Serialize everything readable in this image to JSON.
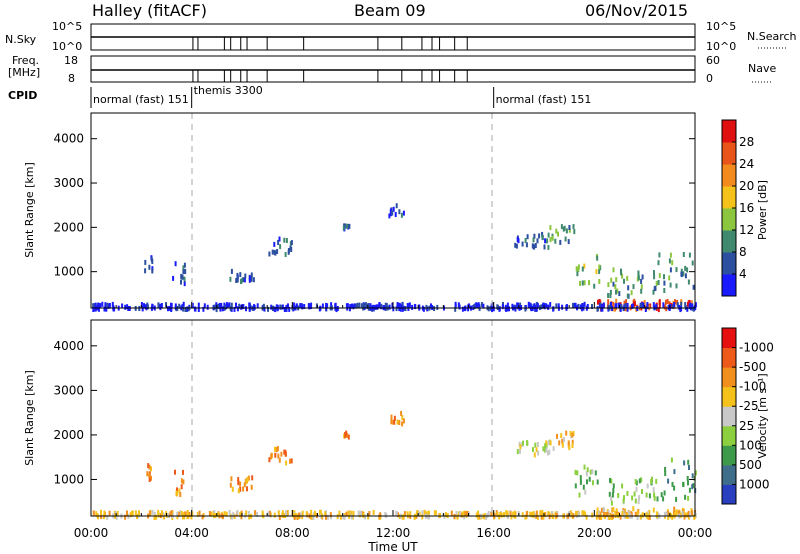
{
  "header": {
    "station": "Halley (fitACF)",
    "beam": "Beam 09",
    "date": "06/Nov/2015"
  },
  "strips": {
    "nsky_label": "N.Sky",
    "nsky_ticks": [
      "10^5",
      "10^0"
    ],
    "nsearch_label": "N.Search",
    "nsearch_ticks": [
      "10^5",
      "10^0"
    ],
    "freq_label_line1": "Freq.",
    "freq_label_line2": "[MHz]",
    "freq_ticks": [
      "18",
      "8"
    ],
    "nave_label": "Nave",
    "nave_ticks": [
      "60",
      "0"
    ],
    "cpid_label": "CPID",
    "cpid_segments": [
      {
        "text": "normal (fast) 151",
        "start_hour": 0
      },
      {
        "text": "themis 3300",
        "start_hour": 4
      },
      {
        "text": "normal (fast) 151",
        "start_hour": 16
      }
    ]
  },
  "chart_data": [
    {
      "type": "heatmap",
      "name": "power",
      "ylabel": "Slant Range [km]",
      "yticks": [
        1000,
        2000,
        3000,
        4000
      ],
      "ylim": [
        180,
        4580
      ],
      "xlim": [
        0,
        24
      ],
      "colorbar_label": "Power [dB]",
      "colorbar_ticks": [
        "4",
        "8",
        "12",
        "16",
        "20",
        "24",
        "28"
      ],
      "colorbar_colors": [
        "#1a1aff",
        "#2d4fa0",
        "#3f8a6e",
        "#8cc63f",
        "#f5c21b",
        "#f28a1e",
        "#e8541a",
        "#e01010"
      ],
      "scatter_clusters": [
        {
          "t": [
            2.1,
            2.4
          ],
          "r": [
            1050,
            1400
          ],
          "c": 1
        },
        {
          "t": [
            3.2,
            3.8
          ],
          "r": [
            700,
            1300
          ],
          "c": 1
        },
        {
          "t": [
            5.5,
            6.5
          ],
          "r": [
            800,
            1100
          ],
          "c": 1
        },
        {
          "t": [
            7.0,
            8.0
          ],
          "r": [
            1400,
            1800
          ],
          "c": 1
        },
        {
          "t": [
            10.0,
            10.3
          ],
          "r": [
            2000,
            2100
          ],
          "c": 1
        },
        {
          "t": [
            11.8,
            12.4
          ],
          "r": [
            2300,
            2550
          ],
          "c": 1
        },
        {
          "t": [
            16.8,
            18.2
          ],
          "r": [
            1600,
            1900
          ],
          "c": 1
        },
        {
          "t": [
            18.2,
            19.2
          ],
          "r": [
            1700,
            2100
          ],
          "c": 2
        },
        {
          "t": [
            19.2,
            20.2
          ],
          "r": [
            700,
            1400
          ],
          "c": 3
        },
        {
          "t": [
            20.5,
            22.5
          ],
          "r": [
            500,
            1100
          ],
          "c": 2
        },
        {
          "t": [
            22.5,
            24.0
          ],
          "r": [
            600,
            1500
          ],
          "c": 2
        },
        {
          "t": [
            20.0,
            24.0
          ],
          "r": [
            200,
            400
          ],
          "c": 6
        },
        {
          "t": [
            0.0,
            24.0
          ],
          "r": [
            200,
            320
          ],
          "c": 0
        }
      ]
    },
    {
      "type": "heatmap",
      "name": "velocity",
      "ylabel": "Slant Range [km]",
      "yticks": [
        1000,
        2000,
        3000,
        4000
      ],
      "ylim": [
        180,
        4580
      ],
      "xlim": [
        0,
        24
      ],
      "xticks": [
        "00:00",
        "04:00",
        "08:00",
        "12:00",
        "16:00",
        "20:00",
        "00:00"
      ],
      "xlabel": "Time UT",
      "colorbar_label": "Velocity [m s⁻¹]",
      "colorbar_ticks": [
        "1000",
        "500",
        "100",
        "25",
        "-25",
        "-100",
        "-500",
        "-1000"
      ],
      "colorbar_colors": [
        "#2a3fc0",
        "#3f6e8a",
        "#3c9a4a",
        "#8ccf3f",
        "#c8c8c8",
        "#f5c21b",
        "#f2901e",
        "#ee5a1a",
        "#e61010"
      ],
      "scatter_clusters": [
        {
          "t": [
            2.1,
            2.4
          ],
          "r": [
            1050,
            1400
          ],
          "c": 6
        },
        {
          "t": [
            3.2,
            3.8
          ],
          "r": [
            700,
            1300
          ],
          "c": 6
        },
        {
          "t": [
            5.5,
            6.5
          ],
          "r": [
            800,
            1100
          ],
          "c": 6
        },
        {
          "t": [
            7.0,
            8.0
          ],
          "r": [
            1400,
            1800
          ],
          "c": 6
        },
        {
          "t": [
            10.0,
            10.3
          ],
          "r": [
            2000,
            2100
          ],
          "c": 6
        },
        {
          "t": [
            11.8,
            12.4
          ],
          "r": [
            2300,
            2550
          ],
          "c": 6
        },
        {
          "t": [
            16.8,
            18.2
          ],
          "r": [
            1600,
            1900
          ],
          "c": 4
        },
        {
          "t": [
            18.2,
            19.2
          ],
          "r": [
            1700,
            2100
          ],
          "c": 5
        },
        {
          "t": [
            19.2,
            20.2
          ],
          "r": [
            700,
            1400
          ],
          "c": 3
        },
        {
          "t": [
            20.5,
            22.5
          ],
          "r": [
            500,
            1100
          ],
          "c": 3
        },
        {
          "t": [
            22.5,
            24.0
          ],
          "r": [
            600,
            1500
          ],
          "c": 2
        },
        {
          "t": [
            20.0,
            24.0
          ],
          "r": [
            200,
            400
          ],
          "c": 5
        },
        {
          "t": [
            0.0,
            24.0
          ],
          "r": [
            200,
            320
          ],
          "c": 5
        }
      ]
    }
  ]
}
